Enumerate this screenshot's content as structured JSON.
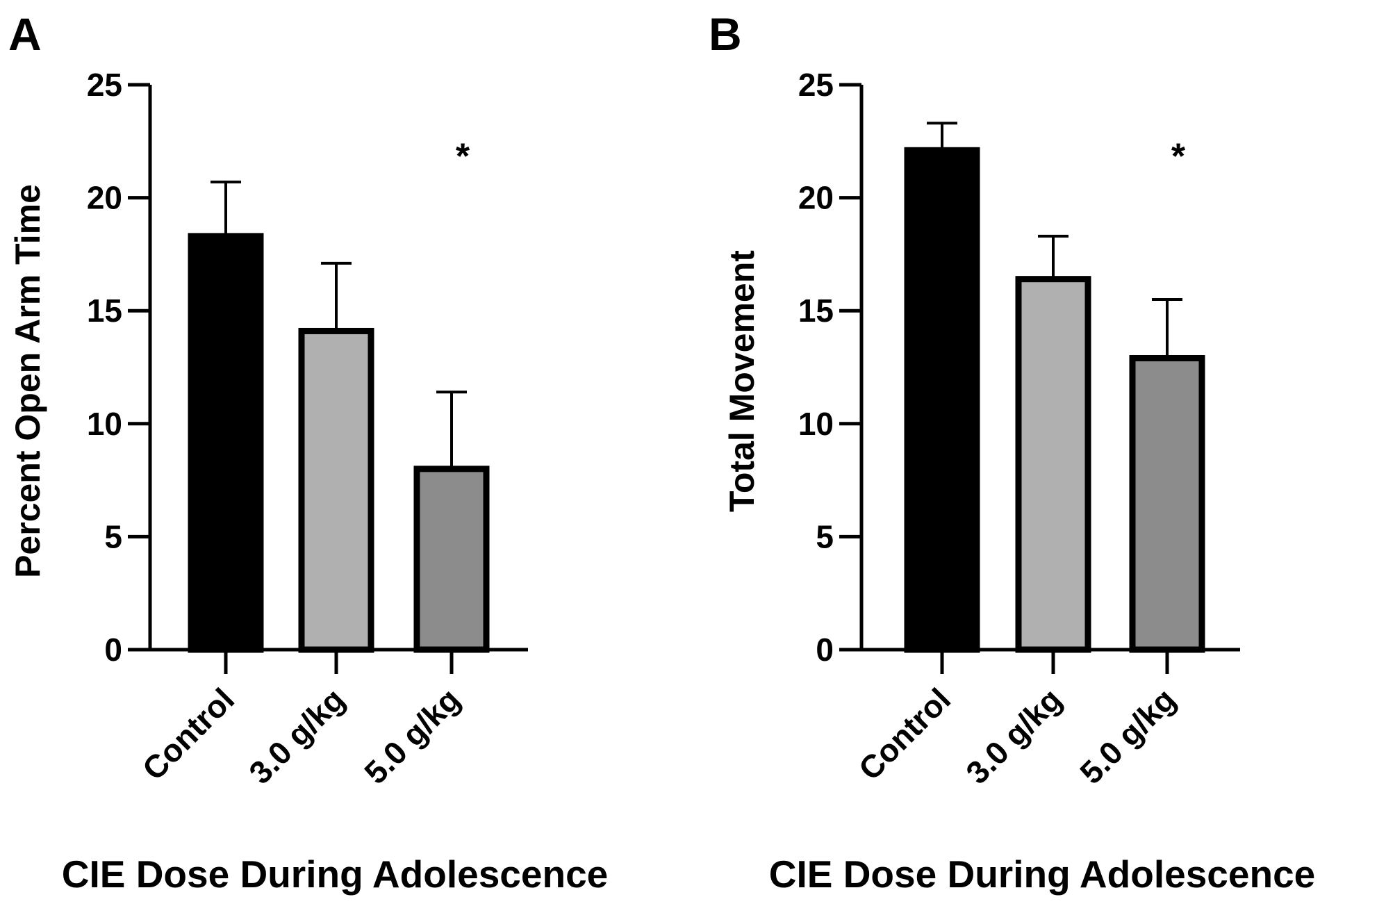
{
  "chart_data": [
    {
      "panel": "A",
      "type": "bar",
      "categories": [
        "Control",
        "3.0 g/kg",
        "5.0 g/kg"
      ],
      "values": [
        18.3,
        14.1,
        8.0
      ],
      "errors": [
        2.4,
        3.0,
        3.4
      ],
      "colors": [
        "#000000",
        "#b0b0b0",
        "#8c8c8c"
      ],
      "significance": [
        "",
        "",
        "*"
      ],
      "ylabel": "Percent Open Arm Time",
      "xlabel": "CIE Dose During Adolescence",
      "ylim": [
        0,
        25
      ],
      "yticks": [
        0,
        5,
        10,
        15,
        20,
        25
      ]
    },
    {
      "panel": "B",
      "type": "bar",
      "categories": [
        "Control",
        "3.0 g/kg",
        "5.0 g/kg"
      ],
      "values": [
        22.1,
        16.4,
        12.9
      ],
      "errors": [
        1.2,
        1.9,
        2.6
      ],
      "colors": [
        "#000000",
        "#b0b0b0",
        "#8c8c8c"
      ],
      "significance": [
        "",
        "",
        "*"
      ],
      "ylabel": "Total Movement",
      "xlabel": "CIE Dose During Adolescence",
      "ylim": [
        0,
        25
      ],
      "yticks": [
        0,
        5,
        10,
        15,
        20,
        25
      ]
    }
  ]
}
